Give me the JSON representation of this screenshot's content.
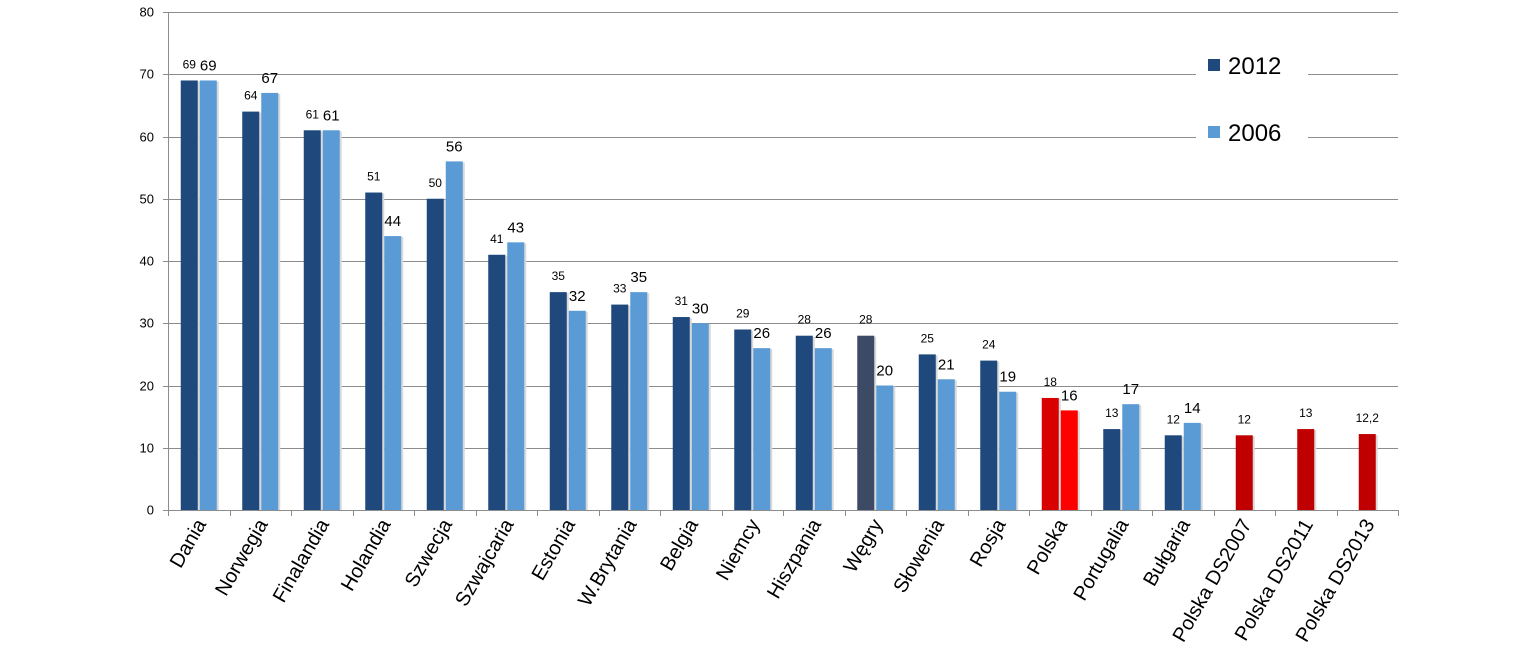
{
  "chart_data": {
    "type": "bar",
    "title": "",
    "xlabel": "",
    "ylabel": "",
    "ylim": [
      0,
      80
    ],
    "yticks": [
      0,
      10,
      20,
      30,
      40,
      50,
      60,
      70,
      80
    ],
    "grid": true,
    "legend_position": "top-right",
    "categories": [
      "Dania",
      "Norwegia",
      "Finalandia",
      "Holandia",
      "Szwecja",
      "Szwajcaria",
      "Estonia",
      "W.Brytania",
      "Belgia",
      "Niemcy",
      "Hiszpania",
      "Węgry",
      "Słowenia",
      "Rosja",
      "Polska",
      "Portugalia",
      "Bułgaria",
      "Polska DS2007",
      "Polska DS2011",
      "Polska DS2013"
    ],
    "series": [
      {
        "name": "2012",
        "color": "#1f497d",
        "values": [
          69,
          64,
          61,
          51,
          50,
          41,
          35,
          33,
          31,
          29,
          28,
          28,
          25,
          24,
          18,
          13,
          12,
          12,
          13,
          12.2
        ],
        "labels": [
          "69",
          "64",
          "61",
          "51",
          "50",
          "41",
          "35",
          "33",
          "31",
          "29",
          "28",
          "28",
          "25",
          "24",
          "18",
          "13",
          "12",
          "12",
          "13",
          "12,2"
        ],
        "point_colors": {
          "11": "#3d4a66",
          "14": "#d90000",
          "17": "#c00000",
          "18": "#c00000",
          "19": "#c00000"
        }
      },
      {
        "name": "2006",
        "color": "#5b9bd5",
        "values": [
          69,
          67,
          61,
          44,
          56,
          43,
          32,
          35,
          30,
          26,
          26,
          20,
          21,
          19,
          16,
          17,
          14,
          null,
          null,
          null
        ],
        "labels": [
          "69",
          "67",
          "61",
          "44",
          "56",
          "43",
          "32",
          "35",
          "30",
          "26",
          "26",
          "20",
          "21",
          "19",
          "16",
          "17",
          "14",
          "",
          "",
          ""
        ],
        "point_colors": {
          "14": "#ff0000"
        }
      }
    ]
  }
}
